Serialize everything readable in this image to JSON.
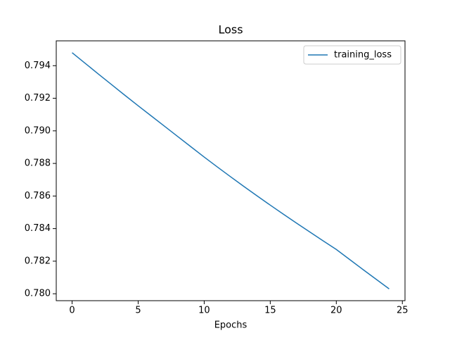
{
  "chart_data": {
    "type": "line",
    "title": "Loss",
    "xlabel": "Epochs",
    "x": [
      0,
      1,
      2,
      3,
      4,
      5,
      6,
      7,
      8,
      9,
      10,
      11,
      12,
      13,
      14,
      15,
      16,
      17,
      18,
      19,
      20,
      21,
      22,
      23,
      24
    ],
    "series": [
      {
        "name": "training_loss",
        "color": "#1f77b4",
        "values": [
          0.7948,
          0.79414,
          0.79348,
          0.79283,
          0.79218,
          0.79154,
          0.79091,
          0.79028,
          0.78965,
          0.78902,
          0.78839,
          0.78778,
          0.78718,
          0.78659,
          0.78601,
          0.78544,
          0.78488,
          0.78433,
          0.78379,
          0.78325,
          0.78272,
          0.78211,
          0.7815,
          0.7809,
          0.7803
        ]
      }
    ],
    "xlim": [
      -1.2,
      25.2
    ],
    "xticks": [
      0,
      5,
      10,
      15,
      20,
      25
    ],
    "ylim": [
      0.779575,
      0.795525
    ],
    "yticks": [
      {
        "value": 0.78,
        "label": "0.780"
      },
      {
        "value": 0.782,
        "label": "0.782"
      },
      {
        "value": 0.784,
        "label": "0.784"
      },
      {
        "value": 0.786,
        "label": "0.786"
      },
      {
        "value": 0.788,
        "label": "0.788"
      },
      {
        "value": 0.79,
        "label": "0.790"
      },
      {
        "value": 0.792,
        "label": "0.792"
      },
      {
        "value": 0.794,
        "label": "0.794"
      }
    ],
    "legend": "upper right"
  }
}
